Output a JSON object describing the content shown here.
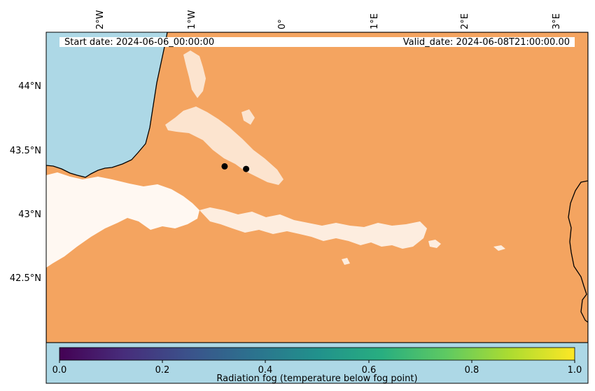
{
  "map": {
    "start_date": "Start date: 2024-06-06_00:00:00",
    "valid_date": "Valid_date: 2024-06-08T21:00:00.00",
    "lon_ticks": [
      "2°W",
      "1°W",
      "0°",
      "1°E",
      "2°E",
      "3°E"
    ],
    "lat_ticks": [
      "44°N",
      "43.5°N",
      "43°N",
      "42.5°N"
    ],
    "extent": {
      "lon_min": -2.58,
      "lon_max": 3.22,
      "lat_min": 42.0,
      "lat_max": 44.43
    },
    "colors": {
      "sea": "#add8e6",
      "land": "#f4a460",
      "fog": "#ffffff",
      "points": "#000000"
    },
    "points": [
      {
        "lon": -0.67,
        "lat": 43.38
      },
      {
        "lon": -0.44,
        "lat": 43.36
      }
    ]
  },
  "colorbar": {
    "label": "Radiation fog (temperature below fog point)",
    "ticks": [
      "0.0",
      "0.2",
      "0.4",
      "0.6",
      "0.8",
      "1.0"
    ],
    "colormap": "viridis",
    "background": "#add8e6"
  }
}
